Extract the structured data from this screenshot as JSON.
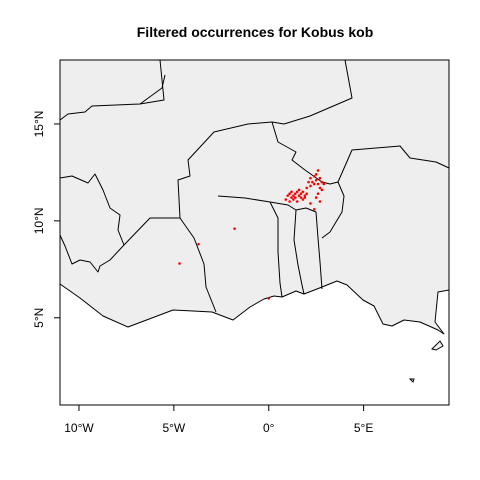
{
  "chart_data": {
    "type": "scatter",
    "title": "Filtered occurrences for Kobus kob",
    "xlabel": "",
    "ylabel": "",
    "xlim": [
      -11,
      9.5
    ],
    "ylim": [
      0.5,
      18.3
    ],
    "x_ticks": [
      {
        "value": -10,
        "label": "10°W"
      },
      {
        "value": -5,
        "label": "5°W"
      },
      {
        "value": 0,
        "label": "0°"
      },
      {
        "value": 5,
        "label": "5°E"
      }
    ],
    "y_ticks": [
      {
        "value": 5,
        "label": "5°N"
      },
      {
        "value": 10,
        "label": "10°N"
      },
      {
        "value": 15,
        "label": "15°N"
      }
    ],
    "grid": false,
    "land_color": "#eeeeee",
    "point_color": "#ff0000",
    "series": [
      {
        "x": [
          -4.7,
          -3.7,
          -1.8,
          0.0,
          0.9,
          1.0,
          1.1,
          1.1,
          1.2,
          1.2,
          1.3,
          1.3,
          1.4,
          1.4,
          1.5,
          1.5,
          1.6,
          1.6,
          1.7,
          1.7,
          1.8,
          1.8,
          1.9,
          1.9,
          2.0,
          2.0,
          2.1,
          2.2,
          2.2,
          2.3,
          2.4,
          2.4,
          2.5,
          2.5,
          2.6,
          2.6,
          2.7,
          2.7,
          2.8,
          2.8,
          2.9,
          2.6,
          2.5,
          2.7,
          2.2,
          2.4
        ],
        "y": [
          7.8,
          8.8,
          9.6,
          6.0,
          11.1,
          11.3,
          11.0,
          11.4,
          11.2,
          11.5,
          11.1,
          11.3,
          11.4,
          11.2,
          11.5,
          11.0,
          11.3,
          11.6,
          11.2,
          11.4,
          11.1,
          11.5,
          11.3,
          11.2,
          11.4,
          11.7,
          12.0,
          11.8,
          12.2,
          12.0,
          11.9,
          12.3,
          12.1,
          12.4,
          11.9,
          12.6,
          12.2,
          11.7,
          12.0,
          11.6,
          11.9,
          11.4,
          11.2,
          11.0,
          10.9,
          10.6
        ]
      }
    ]
  }
}
